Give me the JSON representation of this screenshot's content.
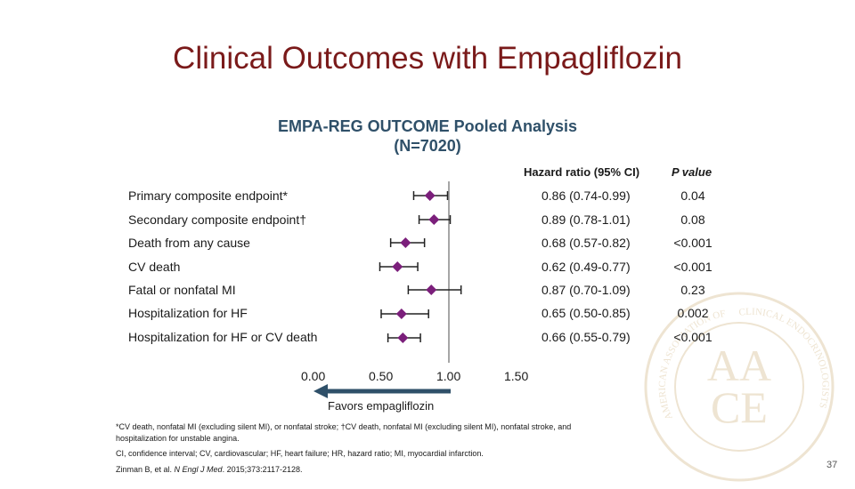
{
  "title": "Clinical Outcomes with Empagliflozin",
  "subtitle": {
    "line1": "EMPA-REG OUTCOME Pooled Analysis",
    "line2": "(N=7020)"
  },
  "column_headers": {
    "hazard_ratio": "Hazard ratio (95% CI)",
    "p_value": "P value"
  },
  "favors_label": "Favors empagliflozin",
  "footnotes": {
    "line1": "*CV death, nonfatal MI (excluding silent MI), or nonfatal stroke; †CV death, nonfatal MI (excluding silent MI), nonfatal stroke, and",
    "line2": "hospitalization for unstable angina.",
    "abbreviations": "CI, confidence interval; CV, cardiovascular; HF, heart failure; HR, hazard ratio; MI, myocardial infarction.",
    "citation_authors": "Zinman B, et al. ",
    "citation_journal": "N Engl J Med",
    "citation_rest": ". 2015;373:2117-2128."
  },
  "page_number": "37",
  "watermark": {
    "outer_text_left": "AMERICAN ASSOCIATION OF",
    "outer_text_right": "CLINICAL ENDOCRINOLOGISTS",
    "monogram_top": "AA",
    "monogram_bottom": "CE"
  },
  "colors": {
    "title": "#7a1a1a",
    "subtitle": "#2f5069",
    "marker": "#7b1f7b",
    "arrow": "#2f5069",
    "axis": "#888888",
    "watermark": "#eee4d2"
  },
  "chart_data": {
    "type": "forest",
    "xlim": [
      0.0,
      1.5
    ],
    "x_ticks": [
      "0.00",
      "0.50",
      "1.00",
      "1.50"
    ],
    "x_tick_values": [
      0.0,
      0.5,
      1.0,
      1.5
    ],
    "reference_line": 1.0,
    "rows": [
      {
        "label": "Primary composite endpoint*",
        "hr": 0.86,
        "lo": 0.74,
        "hi": 0.99,
        "hr_text": "0.86 (0.74-0.99)",
        "p": "0.04"
      },
      {
        "label": "Secondary composite endpoint†",
        "hr": 0.89,
        "lo": 0.78,
        "hi": 1.01,
        "hr_text": "0.89 (0.78-1.01)",
        "p": "0.08"
      },
      {
        "label": "Death from any cause",
        "hr": 0.68,
        "lo": 0.57,
        "hi": 0.82,
        "hr_text": "0.68 (0.57-0.82)",
        "p": "<0.001"
      },
      {
        "label": "CV death",
        "hr": 0.62,
        "lo": 0.49,
        "hi": 0.77,
        "hr_text": "0.62 (0.49-0.77)",
        "p": "<0.001"
      },
      {
        "label": "Fatal or nonfatal MI",
        "hr": 0.87,
        "lo": 0.7,
        "hi": 1.09,
        "hr_text": "0.87 (0.70-1.09)",
        "p": "0.23"
      },
      {
        "label": "Hospitalization for HF",
        "hr": 0.65,
        "lo": 0.5,
        "hi": 0.85,
        "hr_text": "0.65 (0.50-0.85)",
        "p": "0.002"
      },
      {
        "label": "Hospitalization for HF or CV death",
        "hr": 0.66,
        "lo": 0.55,
        "hi": 0.79,
        "hr_text": "0.66 (0.55-0.79)",
        "p": "<0.001"
      }
    ]
  }
}
